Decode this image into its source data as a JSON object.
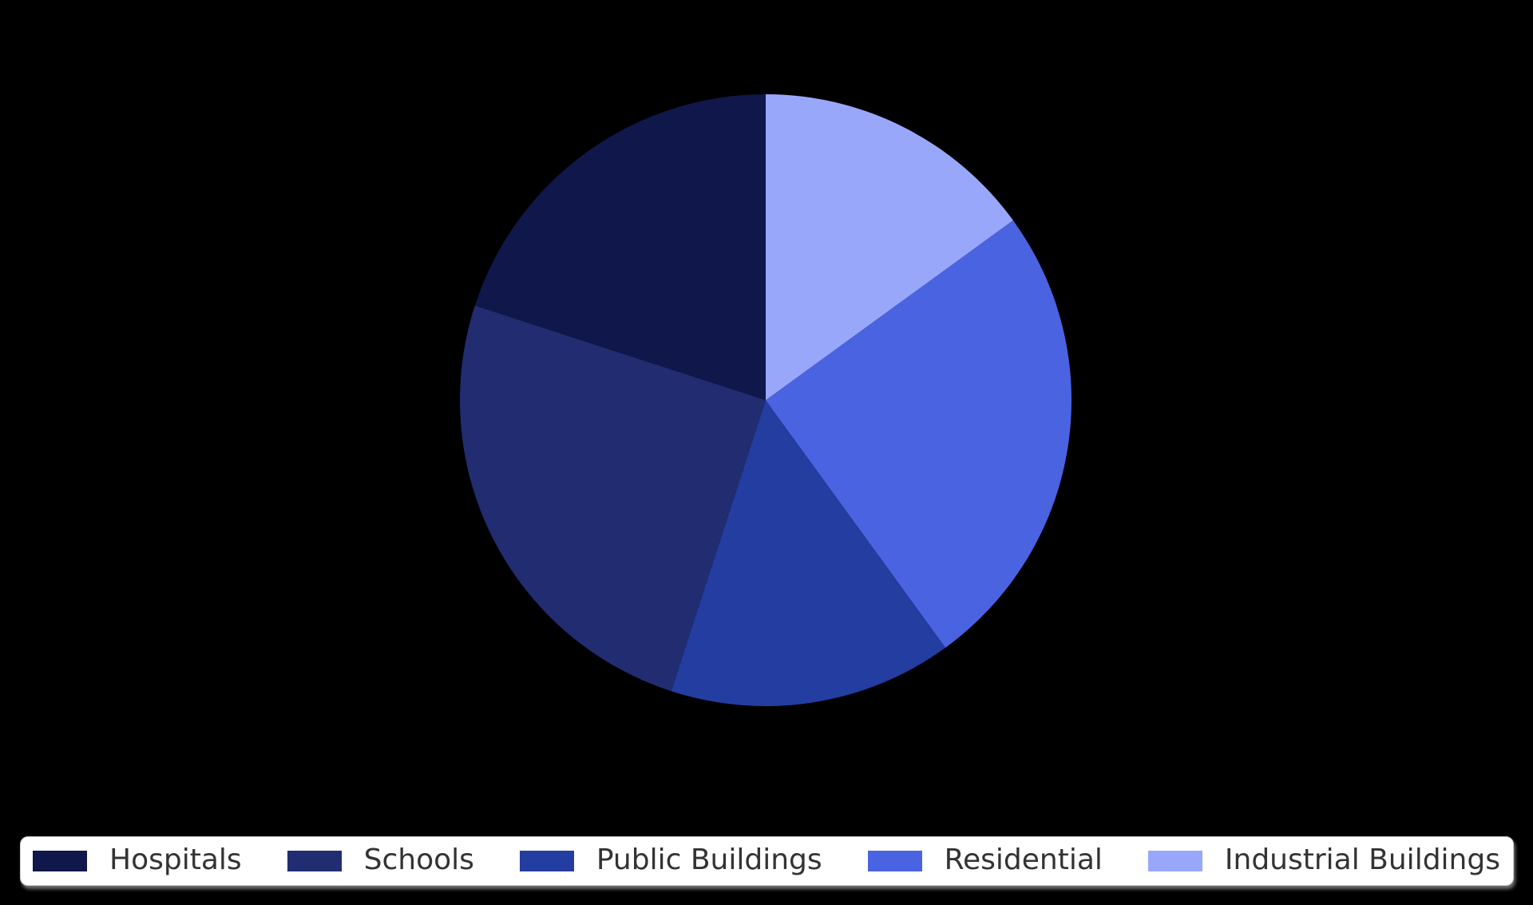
{
  "chart_data": {
    "type": "pie",
    "title": "",
    "labels": [
      "Hospitals",
      "Schools",
      "Public Buildings",
      "Residential",
      "Industrial Buildings"
    ],
    "values": [
      20,
      25,
      15,
      25,
      15
    ],
    "colors": [
      "#10174a",
      "#212c71",
      "#233da0",
      "#4a63e0",
      "#99a7fb"
    ],
    "start_angle_deg": 90,
    "direction": "counterclockwise",
    "legend_position": "bottom",
    "legend_background": "#ffffff",
    "legend_border_color": "#cccccc",
    "legend_text_color": "#333333",
    "background": "#000000"
  }
}
